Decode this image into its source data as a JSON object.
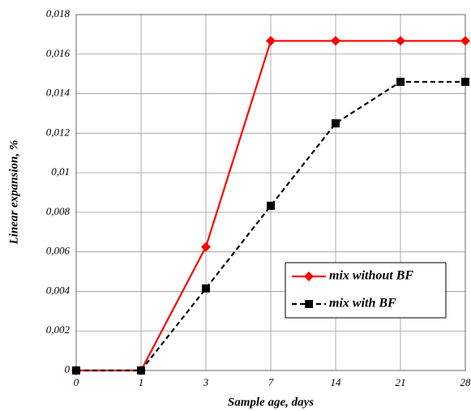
{
  "chart_data": {
    "type": "line",
    "x_label": "Sample age, days",
    "y_label": "Linear expansion, %",
    "categories": [
      "0",
      "1",
      "3",
      "7",
      "14",
      "21",
      "28"
    ],
    "series": [
      {
        "name": "mix without BF",
        "color": "#ff0000",
        "linestyle": "solid",
        "marker": "diamond",
        "values": [
          0,
          0,
          0.00625,
          0.01667,
          0.01667,
          0.01667,
          0.01667
        ]
      },
      {
        "name": "mix with BF",
        "color": "#000000",
        "linestyle": "dashed",
        "marker": "square",
        "values": [
          0,
          0,
          0.00415,
          0.00833,
          0.0125,
          0.0146,
          0.0146
        ]
      }
    ],
    "ylim": [
      0,
      0.018
    ],
    "yticks": [
      0,
      {
        "value": 0.002,
        "label": "0,002"
      },
      {
        "value": 0.004,
        "label": "0,004"
      },
      {
        "value": 0.006,
        "label": "0,006"
      },
      {
        "value": 0.008,
        "label": "0,008"
      },
      {
        "value": 0.01,
        "label": "0,01"
      },
      {
        "value": 0.012,
        "label": "0,012"
      },
      {
        "value": 0.014,
        "label": "0,014"
      },
      {
        "value": 0.016,
        "label": "0,016"
      },
      {
        "value": 0.018,
        "label": "0,018"
      }
    ],
    "grid": true,
    "legend_position": "lower right"
  }
}
